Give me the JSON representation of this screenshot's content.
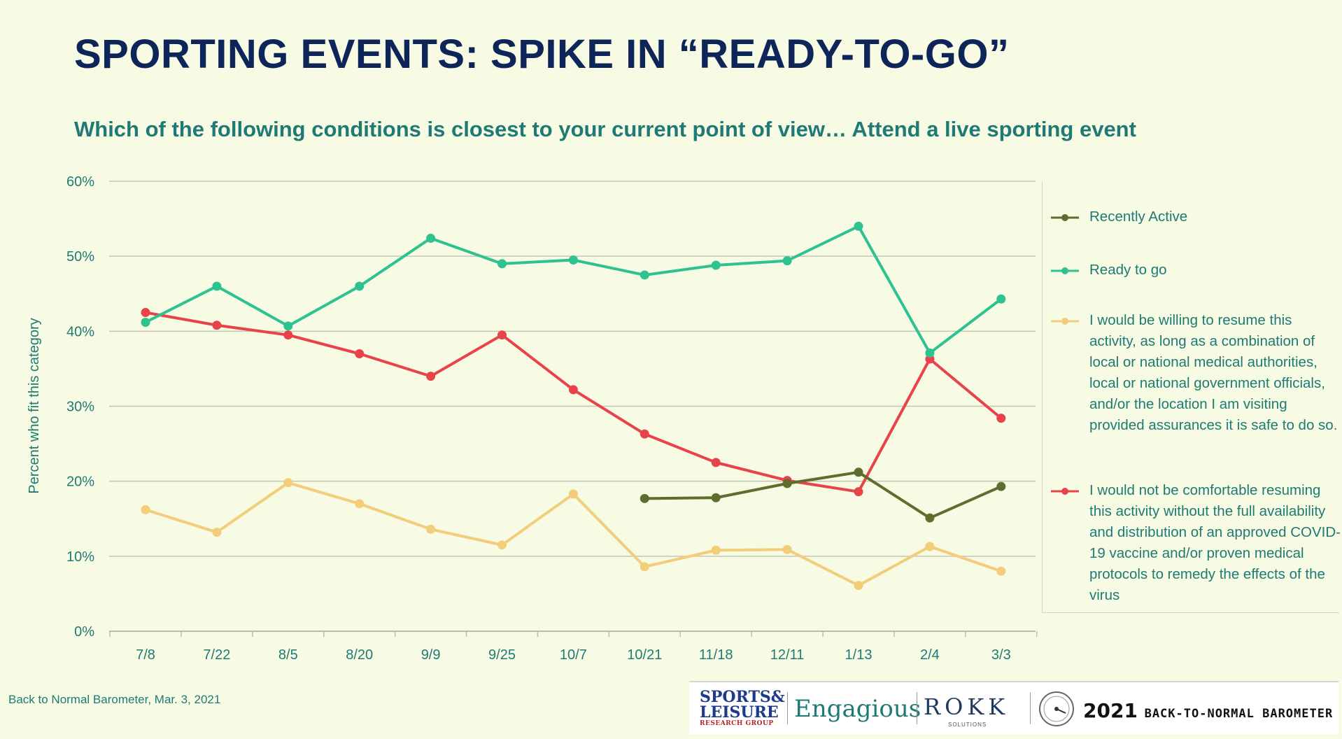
{
  "title": "SPORTING EVENTS: SPIKE IN “READY-TO-GO”",
  "subtitle": "Which of the following conditions is closest to your current point of view… Attend a live sporting event",
  "footer_note": "Back to Normal Barometer, Mar. 3, 2021",
  "logos": {
    "sports_line1": "SPORTS&",
    "sports_line2": "LEISURE",
    "sports_line3": "RESEARCH GROUP",
    "engagious": "Engagious",
    "rokk": "ROKK",
    "rokk_sub": "SOLUTIONS",
    "barometer_year": "2021",
    "barometer_text": "BACK-TO-NORMAL BAROMETER"
  },
  "chart_data": {
    "type": "line",
    "ylabel": "Percent who fit this category",
    "xlabel": "",
    "ylim": [
      0,
      60
    ],
    "yticks": [
      0,
      10,
      20,
      30,
      40,
      50,
      60
    ],
    "ytick_labels": [
      "0%",
      "10%",
      "20%",
      "30%",
      "40%",
      "50%",
      "60%"
    ],
    "categories": [
      "7/8",
      "7/22",
      "8/5",
      "8/20",
      "9/9",
      "9/25",
      "10/7",
      "10/21",
      "11/18",
      "12/11",
      "1/13",
      "2/4",
      "3/3"
    ],
    "grid": true,
    "legend_position": "right",
    "series": [
      {
        "name": "Recently Active",
        "color": "#5e6e2f",
        "values": [
          null,
          null,
          null,
          null,
          null,
          null,
          null,
          17.7,
          17.8,
          19.7,
          21.2,
          15.1,
          19.3
        ]
      },
      {
        "name": "Ready to go",
        "color": "#2fc291",
        "values": [
          41.2,
          46.0,
          40.7,
          46.0,
          52.4,
          49.0,
          49.5,
          47.5,
          48.8,
          49.4,
          54.0,
          37.1,
          44.3
        ]
      },
      {
        "name": "I would be willing to resume this activity, as long as a combination of local or national medical authorities, local or national government officials, and/or the location I am visiting provided assurances it is safe to do so.",
        "color": "#f2cd7a",
        "values": [
          16.2,
          13.2,
          19.8,
          17.0,
          13.6,
          11.5,
          18.3,
          8.6,
          10.8,
          10.9,
          6.1,
          11.3,
          8.0
        ]
      },
      {
        "name": "I would not be comfortable resuming this activity without the full availability and distribution of an approved COVID-19 vaccine and/or proven medical protocols to remedy the effects of the virus",
        "color": "#e8434a",
        "values": [
          42.5,
          40.8,
          39.5,
          37.0,
          34.0,
          39.5,
          32.2,
          26.3,
          22.5,
          20.1,
          18.6,
          36.3,
          28.4
        ]
      }
    ]
  }
}
